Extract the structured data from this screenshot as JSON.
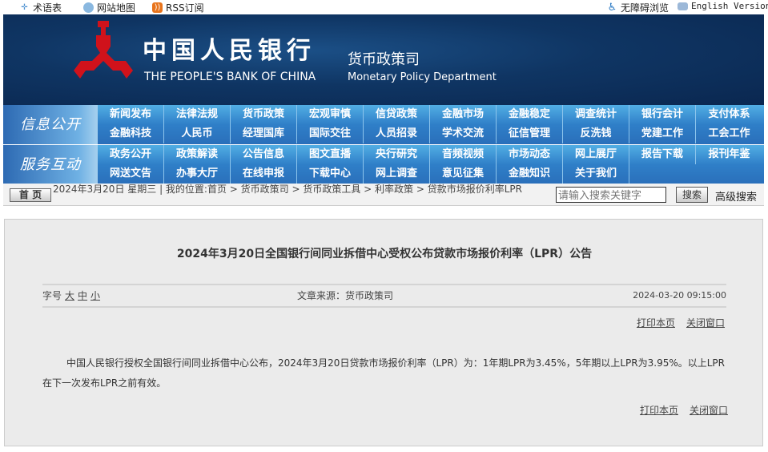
{
  "topbar": {
    "glossary": "术语表",
    "sitemap": "网站地图",
    "rss": "RSS订阅",
    "accessible": "无障碍浏览",
    "english": "English Version"
  },
  "banner": {
    "bank_cn": "中国人民银行",
    "bank_en": "THE PEOPLE'S BANK OF CHINA",
    "dept_cn": "货币政策司",
    "dept_en": "Monetary Policy Department"
  },
  "nav": {
    "info_label": "信息公开",
    "info_items": [
      "新闻发布",
      "法律法规",
      "货币政策",
      "宏观审慎",
      "信贷政策",
      "金融市场",
      "金融稳定",
      "调查统计",
      "银行会计",
      "支付体系",
      "金融科技",
      "人民币",
      "经理国库",
      "国际交往",
      "人员招录",
      "学术交流",
      "征信管理",
      "反洗钱",
      "党建工作",
      "工会工作"
    ],
    "service_label": "服务互动",
    "service_items": [
      "政务公开",
      "政策解读",
      "公告信息",
      "图文直播",
      "央行研究",
      "音频视频",
      "市场动态",
      "网上展厅",
      "报告下载",
      "报刊年鉴",
      "网送文告",
      "办事大厅",
      "在线申报",
      "下载中心",
      "网上调查",
      "意见征集",
      "金融知识",
      "关于我们"
    ]
  },
  "breadcrumb": {
    "home": "首 页",
    "text": "2024年3月20日 星期三 | 我的位置:首页 > 货币政策司 > 货币政策工具 > 利率政策 > 贷款市场报价利率LPR"
  },
  "search": {
    "placeholder": "请输入搜索关键字",
    "button": "搜索",
    "advanced": "高级搜索"
  },
  "article": {
    "title": "2024年3月20日全国银行间同业拆借中心受权公布贷款市场报价利率（LPR）公告",
    "font_label": "字号",
    "font_large": "大",
    "font_medium": "中",
    "font_small": "小",
    "source": "文章来源：货币政策司",
    "date": "2024-03-20 09:15:00",
    "print": "打印本页",
    "close": "关闭窗口",
    "body": "中国人民银行授权全国银行间同业拆借中心公布，2024年3月20日贷款市场报价利率（LPR）为：1年期LPR为3.45%，5年期以上LPR为3.95%。以上LPR在下一次发布LPR之前有效。"
  },
  "colors": {
    "banner": "#0f3563",
    "nav": "#2f7fc8",
    "logo_red": "#d0121b",
    "content_bg": "#ebebeb"
  }
}
